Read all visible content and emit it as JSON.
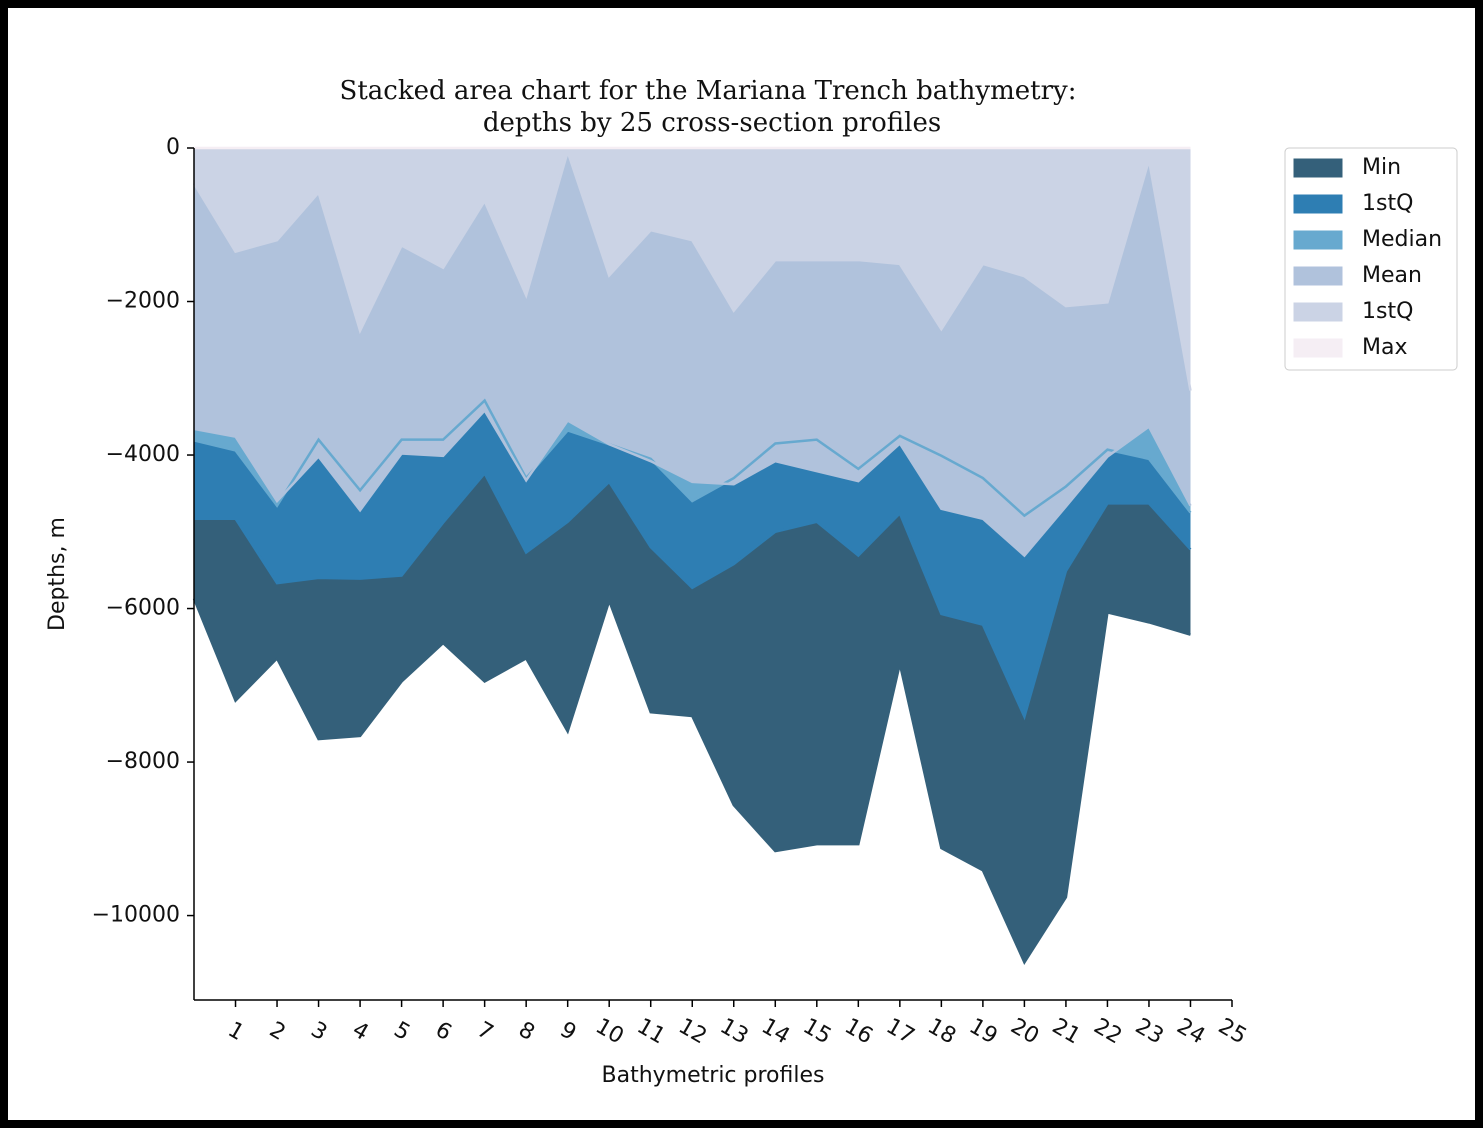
{
  "chart_data": {
    "type": "area",
    "title": [
      "Stacked area chart for the Mariana Trench bathymetry:",
      "depths by 25 cross-section profiles"
    ],
    "x_label": "Bathymetric profiles",
    "y_label": "Depths, m",
    "x": [
      0,
      1,
      2,
      3,
      4,
      5,
      6,
      7,
      8,
      9,
      10,
      11,
      12,
      13,
      14,
      15,
      16,
      17,
      18,
      19,
      20,
      21,
      22,
      23,
      24
    ],
    "xlim": [
      0,
      25
    ],
    "xticks": [
      1,
      2,
      3,
      4,
      5,
      6,
      7,
      8,
      9,
      10,
      11,
      12,
      13,
      14,
      15,
      16,
      17,
      18,
      19,
      20,
      21,
      22,
      23,
      24,
      25
    ],
    "ylim": [
      -11100,
      0
    ],
    "yticks": [
      0,
      {
        "value": -2000,
        "label": "−2000"
      },
      {
        "value": -4000,
        "label": "−4000"
      },
      {
        "value": -6000,
        "label": "−6000"
      },
      {
        "value": -8000,
        "label": "−8000"
      },
      {
        "value": -10000,
        "label": "−10000"
      }
    ],
    "legend": "outside-upper-right",
    "series": [
      {
        "name": "Min",
        "color": "#34607a",
        "values": [
          -5870,
          -7200,
          -6650,
          -7700,
          -7660,
          -6950,
          -6450,
          -6950,
          -6650,
          -7600,
          -5900,
          -7350,
          -7400,
          -8560,
          -9160,
          -9070,
          -9070,
          -6720,
          -9120,
          -9410,
          -10610,
          -9760,
          -6050,
          -6180,
          -6340
        ]
      },
      {
        "name": "1stQ",
        "color": "#2e7eb3",
        "values": [
          -4830,
          -4830,
          -5670,
          -5600,
          -5610,
          -5570,
          -4880,
          -4240,
          -5270,
          -4870,
          -4350,
          -5200,
          -5730,
          -5420,
          -5000,
          -4870,
          -5310,
          -4760,
          -6070,
          -6210,
          -7410,
          -5510,
          -4630,
          -4630,
          -5230
        ]
      },
      {
        "name": "Median",
        "color": "#67a9cf",
        "values": [
          -3810,
          -3940,
          -4660,
          -3800,
          -4460,
          -3800,
          -3800,
          -3290,
          -4300,
          -3680,
          -3860,
          -4050,
          -4600,
          -4300,
          -3850,
          -3800,
          -4180,
          -3750,
          -4010,
          -4300,
          -4790,
          -4410,
          -3930,
          -4050,
          -4750
        ]
      },
      {
        "name": "Mean",
        "color": "#b0c2dc",
        "values": [
          -3660,
          -3760,
          -4600,
          -4020,
          -4720,
          -3980,
          -4010,
          -3420,
          -4330,
          -3550,
          -3860,
          -4080,
          -4350,
          -4380,
          -4080,
          -4210,
          -4340,
          -3850,
          -4700,
          -4830,
          -5310,
          -4670,
          -4020,
          -3630,
          -4660
        ]
      },
      {
        "name": "1stQ",
        "color": "#cbd3e5",
        "values": [
          -460,
          -1350,
          -1200,
          -580,
          -2380,
          -1270,
          -1560,
          -690,
          -1920,
          -50,
          -1660,
          -1070,
          -1200,
          -2120,
          -1460,
          -1460,
          -1460,
          -1510,
          -2360,
          -1510,
          -1670,
          -2060,
          -2010,
          -160,
          -3160
        ]
      },
      {
        "name": "Max",
        "color": "#f5eef4",
        "values": [
          0,
          0,
          0,
          0,
          0,
          0,
          0,
          0,
          0,
          0,
          0,
          0,
          0,
          0,
          0,
          0,
          0,
          0,
          0,
          0,
          0,
          0,
          0,
          0,
          0
        ]
      }
    ]
  }
}
